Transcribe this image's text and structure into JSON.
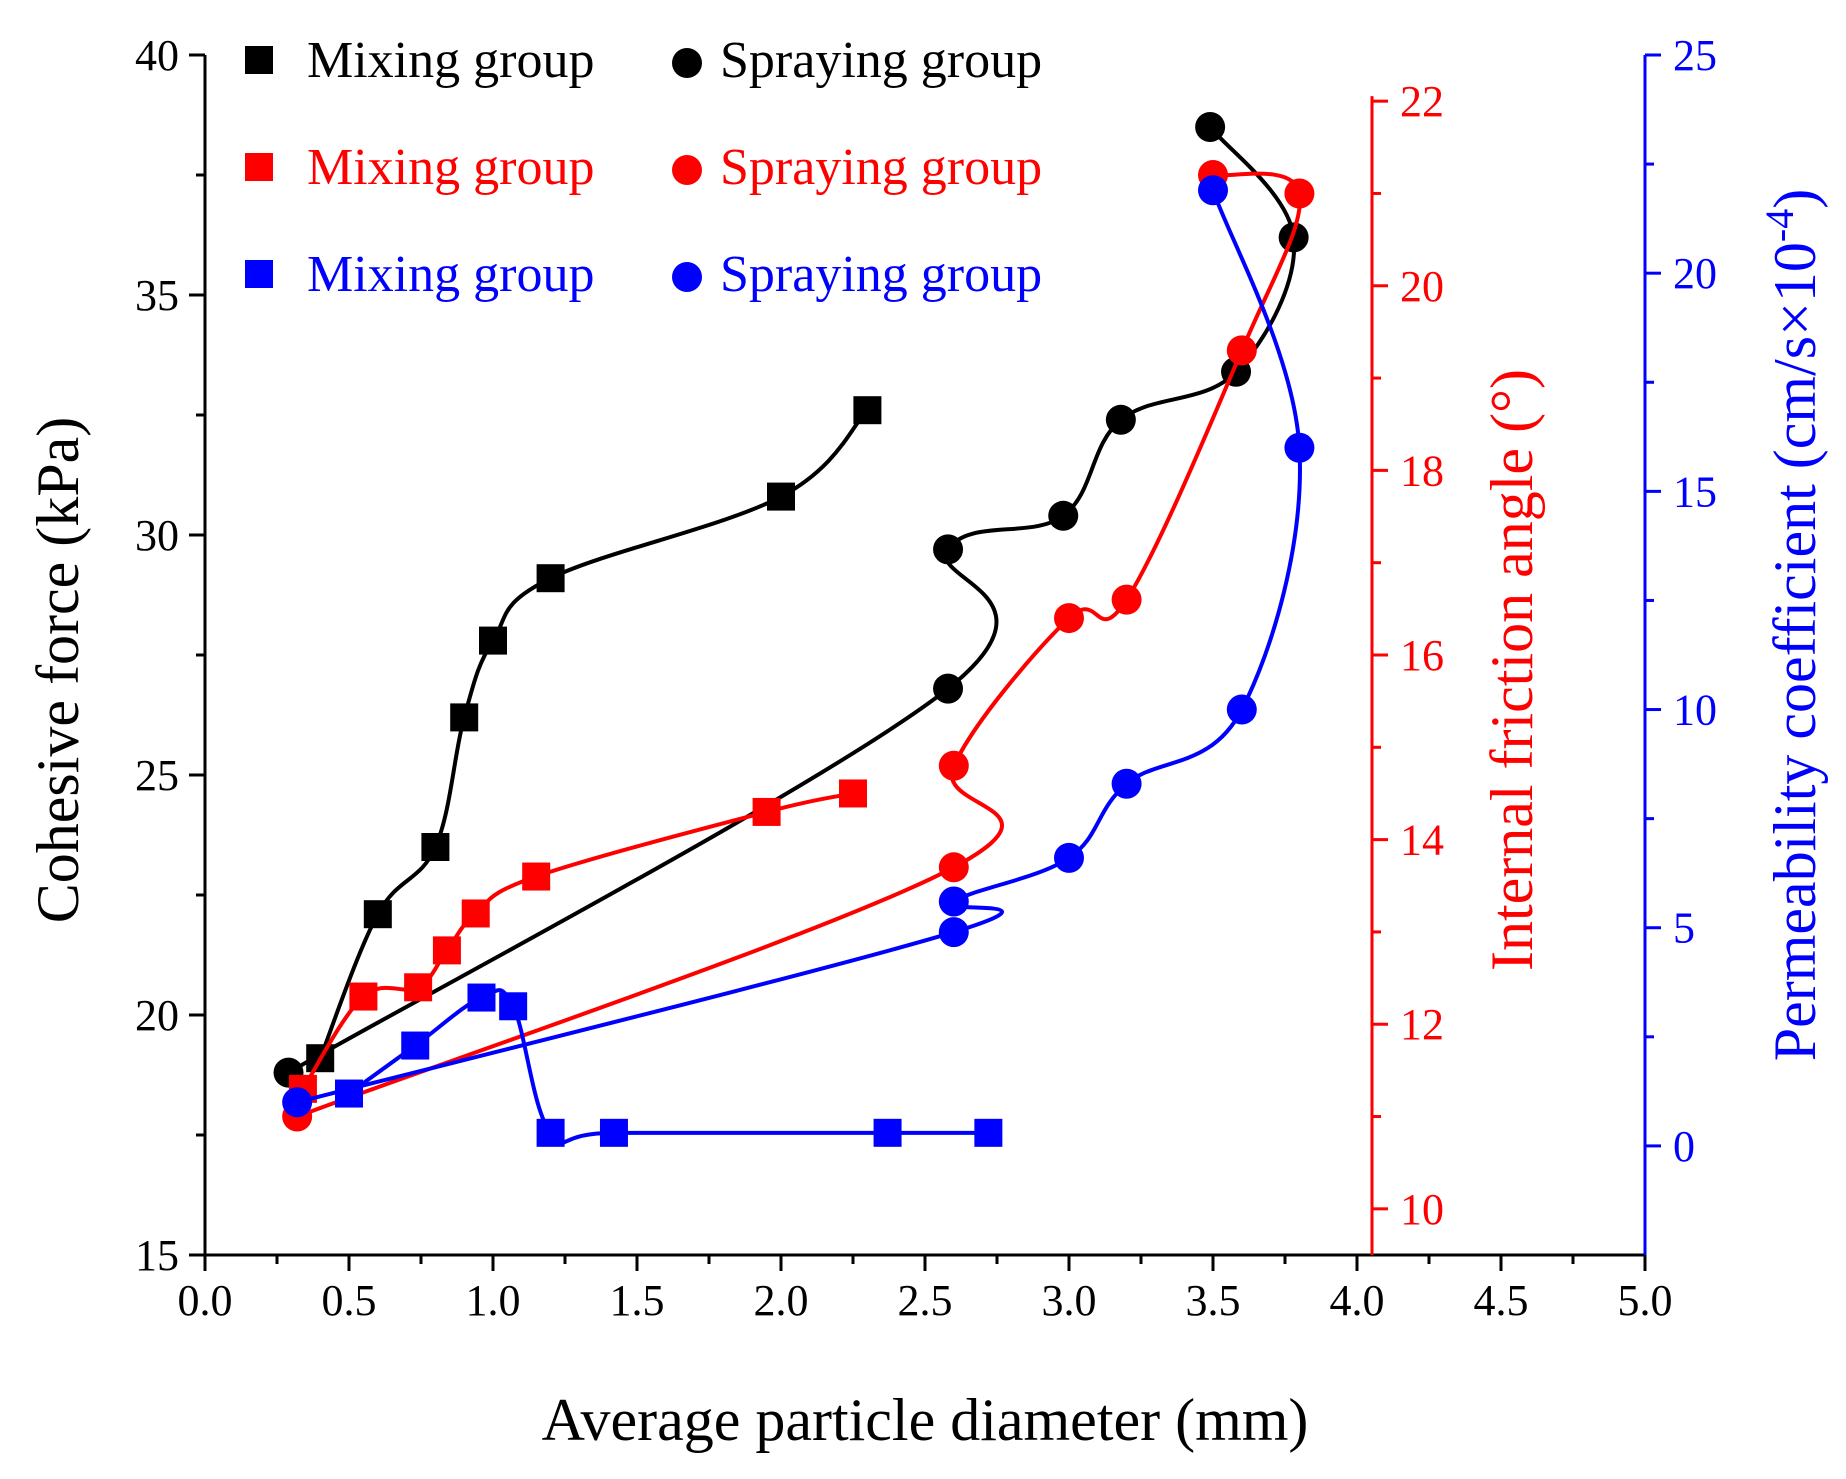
{
  "chart_data": {
    "type": "line",
    "xlabel": "Average particle diameter (mm)",
    "xlim": [
      0,
      5
    ],
    "xticks": [
      0.0,
      0.5,
      1.0,
      1.5,
      2.0,
      2.5,
      3.0,
      3.5,
      4.0,
      4.5,
      5.0
    ],
    "xtick_labels": [
      "0.0",
      "0.5",
      "1.0",
      "1.5",
      "2.0",
      "2.5",
      "3.0",
      "3.5",
      "4.0",
      "4.5",
      "5.0"
    ],
    "axes": {
      "left": {
        "label": "Cohesive force (kPa)",
        "color": "#000000",
        "range": [
          15,
          40
        ],
        "ticks": [
          15,
          20,
          25,
          30,
          35,
          40
        ],
        "tick_labels": [
          "15",
          "20",
          "25",
          "30",
          "35",
          "40"
        ]
      },
      "right1": {
        "label": "Internal friction angle (°)",
        "color": "#ff0000",
        "range": [
          9.5,
          22.5
        ],
        "ticks": [
          10,
          12,
          14,
          16,
          18,
          20,
          22
        ],
        "tick_labels": [
          "10",
          "12",
          "14",
          "16",
          "18",
          "20",
          "22"
        ]
      },
      "right2": {
        "label_main": "Permeability coefficient (cm/s×10",
        "label_sup": "-4",
        "label_end": ")",
        "color": "#0000ff",
        "range": [
          -2.5,
          25
        ],
        "ticks": [
          0,
          5,
          10,
          15,
          20,
          25
        ],
        "tick_labels": [
          "0",
          "5",
          "10",
          "15",
          "20",
          "25"
        ]
      }
    },
    "series": [
      {
        "name": "Mixing group",
        "axis": "left",
        "color": "#000000",
        "marker": "square",
        "x": [
          0.4,
          0.6,
          0.8,
          0.9,
          1.0,
          1.2,
          2.0,
          2.3
        ],
        "y": [
          19.1,
          22.1,
          23.5,
          26.2,
          27.8,
          29.1,
          30.8,
          32.6
        ]
      },
      {
        "name": "Spraying group",
        "axis": "left",
        "color": "#000000",
        "marker": "circle",
        "x": [
          0.29,
          2.58,
          2.58,
          2.98,
          3.18,
          3.58,
          3.78,
          3.49
        ],
        "y": [
          18.8,
          26.8,
          29.7,
          30.4,
          32.4,
          33.4,
          36.2,
          38.5
        ]
      },
      {
        "name": "Mixing group",
        "axis": "right1",
        "color": "#ff0000",
        "marker": "square",
        "x": [
          0.34,
          0.55,
          0.74,
          0.84,
          0.94,
          1.15,
          1.95,
          2.25
        ],
        "y": [
          11.3,
          12.3,
          12.4,
          12.8,
          13.2,
          13.6,
          14.3,
          14.5
        ]
      },
      {
        "name": "Spraying group",
        "axis": "right1",
        "color": "#ff0000",
        "marker": "circle",
        "x": [
          0.32,
          2.6,
          2.6,
          3.0,
          3.2,
          3.6,
          3.8,
          3.5
        ],
        "y": [
          11.0,
          13.7,
          14.8,
          16.4,
          16.6,
          19.3,
          21.0,
          21.2
        ]
      },
      {
        "name": "Mixing group",
        "axis": "right2",
        "color": "#0000ff",
        "marker": "square",
        "x": [
          0.5,
          0.73,
          0.96,
          1.07,
          1.2,
          1.42,
          2.37,
          2.72
        ],
        "y": [
          1.2,
          2.3,
          3.4,
          3.2,
          0.3,
          0.3,
          0.3,
          0.3
        ]
      },
      {
        "name": "Spraying group",
        "axis": "right2",
        "color": "#0000ff",
        "marker": "circle",
        "x": [
          0.32,
          2.6,
          2.6,
          3.0,
          3.2,
          3.6,
          3.8,
          3.5
        ],
        "y": [
          1.0,
          4.9,
          5.6,
          6.6,
          8.3,
          10.0,
          16.0,
          21.9
        ]
      }
    ],
    "legend": {
      "position": "top-left",
      "rows": [
        {
          "color": "#000000",
          "mixing": "Mixing group",
          "spraying": "Spraying group"
        },
        {
          "color": "#ff0000",
          "mixing": "Mixing group",
          "spraying": "Spraying group"
        },
        {
          "color": "#0000ff",
          "mixing": "Mixing group",
          "spraying": "Spraying group"
        }
      ]
    }
  }
}
